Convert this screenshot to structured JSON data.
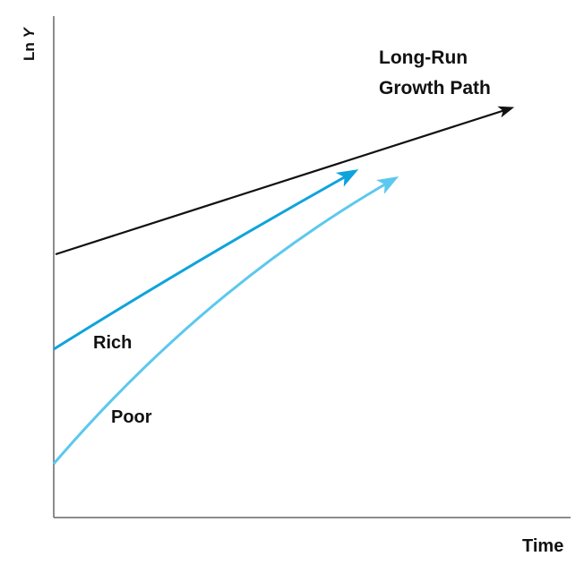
{
  "diagram": {
    "y_axis_label": {
      "prefix": "Ln ",
      "variable": "Y"
    },
    "x_axis_label": "Time",
    "long_run_path": {
      "label_line1": "Long-Run",
      "label_line2": "Growth Path",
      "color": "#111111"
    },
    "rich": {
      "label": "Rich",
      "color": "#0fa3dc"
    },
    "poor": {
      "label": "Poor",
      "color": "#5cc8ee"
    }
  }
}
